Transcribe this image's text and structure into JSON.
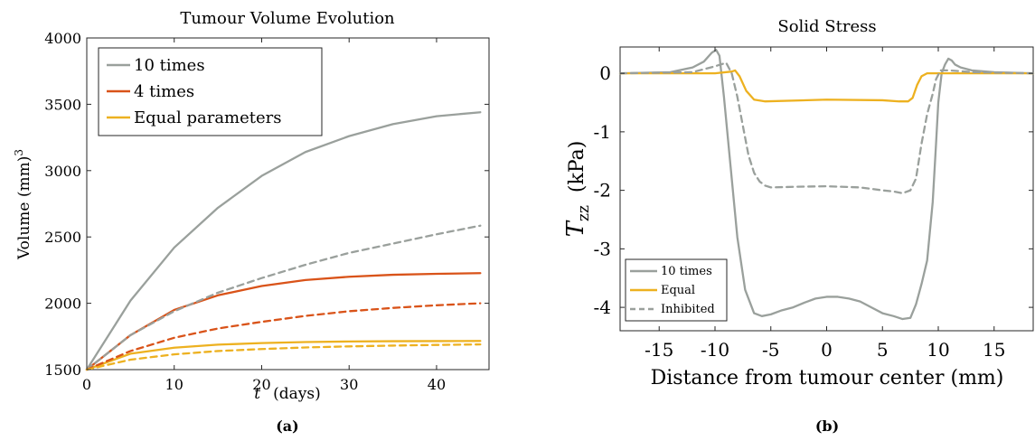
{
  "chart_data": [
    {
      "type": "line",
      "title": "Tumour Volume Evolution",
      "xlabel_italic": "t",
      "xlabel": "(days)",
      "ylabel": "Volume (mm)",
      "ylabel_sup": "3",
      "xlim": [
        0,
        46
      ],
      "ylim": [
        1500,
        4000
      ],
      "xticks": [
        0,
        10,
        20,
        30,
        40
      ],
      "yticks": [
        1500,
        2000,
        2500,
        3000,
        3500,
        4000
      ],
      "grid": false,
      "legend_position": "top-left",
      "caption": "(a)",
      "x": [
        0,
        5,
        10,
        15,
        20,
        25,
        30,
        35,
        40,
        45
      ],
      "series": [
        {
          "name": "10 times",
          "color": "#9aa09c",
          "style": "solid",
          "legend": true,
          "values": [
            1500,
            2020,
            2420,
            2720,
            2960,
            3140,
            3260,
            3350,
            3410,
            3440
          ]
        },
        {
          "name": "4 times",
          "color": "#d95319",
          "style": "solid",
          "legend": true,
          "values": [
            1500,
            1760,
            1950,
            2060,
            2130,
            2175,
            2200,
            2215,
            2222,
            2227
          ]
        },
        {
          "name": "Equal parameters",
          "color": "#edb120",
          "style": "solid",
          "legend": true,
          "values": [
            1500,
            1620,
            1665,
            1688,
            1700,
            1708,
            1712,
            1714,
            1715,
            1716
          ]
        },
        {
          "name": "",
          "color": "#9aa09c",
          "style": "dashed",
          "legend": false,
          "values": [
            1500,
            1760,
            1940,
            2080,
            2190,
            2290,
            2380,
            2450,
            2520,
            2585
          ]
        },
        {
          "name": "",
          "color": "#d95319",
          "style": "dashed",
          "legend": false,
          "values": [
            1500,
            1640,
            1740,
            1810,
            1860,
            1905,
            1940,
            1965,
            1985,
            2000
          ]
        },
        {
          "name": "",
          "color": "#edb120",
          "style": "dashed",
          "legend": false,
          "values": [
            1500,
            1575,
            1615,
            1640,
            1655,
            1667,
            1675,
            1681,
            1686,
            1690
          ]
        }
      ]
    },
    {
      "type": "line",
      "title": "Solid Stress",
      "ylabel_symbol": "T",
      "ylabel_sub": "zz",
      "ylabel_unit": "(kPa)",
      "xlabel": "Distance from tumour center  (mm)",
      "xlim": [
        -18.5,
        18.5
      ],
      "ylim": [
        -4.4,
        0.45
      ],
      "xticks": [
        -15,
        -10,
        -5,
        0,
        5,
        10,
        15
      ],
      "yticks": [
        0,
        -1,
        -2,
        -3,
        -4
      ],
      "grid": false,
      "legend_position": "bottom-left",
      "caption": "(b)",
      "series": [
        {
          "name": "10 times",
          "color": "#9aa09c",
          "style": "solid",
          "x": [
            -18.5,
            -14,
            -12,
            -11,
            -10.3,
            -9.9,
            -9.6,
            -9.2,
            -8.6,
            -8,
            -7.3,
            -6.5,
            -5.8,
            -5,
            -4,
            -3,
            -2,
            -1,
            0,
            1,
            2,
            3,
            4,
            5,
            6,
            6.8,
            7.5,
            8,
            8.5,
            9,
            9.5,
            9.8,
            10,
            10.3,
            10.6,
            10.9,
            11.2,
            11.5,
            12,
            13,
            15,
            18.5
          ],
          "y": [
            0,
            0.02,
            0.1,
            0.2,
            0.35,
            0.4,
            0.3,
            -0.4,
            -1.6,
            -2.8,
            -3.7,
            -4.1,
            -4.15,
            -4.12,
            -4.05,
            -4.0,
            -3.92,
            -3.85,
            -3.82,
            -3.82,
            -3.85,
            -3.9,
            -4.0,
            -4.1,
            -4.15,
            -4.2,
            -4.18,
            -3.95,
            -3.6,
            -3.2,
            -2.2,
            -1.2,
            -0.5,
            0.0,
            0.15,
            0.25,
            0.22,
            0.15,
            0.1,
            0.05,
            0.02,
            0
          ]
        },
        {
          "name": "Equal",
          "color": "#edb120",
          "style": "solid",
          "x": [
            -18.5,
            -10,
            -8.5,
            -8.2,
            -7.8,
            -7.2,
            -6.5,
            -5.5,
            0,
            5,
            6.5,
            7.3,
            7.7,
            8.1,
            8.5,
            9,
            18.5
          ],
          "y": [
            0,
            0,
            0.03,
            0.05,
            -0.05,
            -0.3,
            -0.45,
            -0.48,
            -0.45,
            -0.46,
            -0.48,
            -0.48,
            -0.42,
            -0.2,
            -0.05,
            0,
            0
          ]
        },
        {
          "name": "Inhibited",
          "color": "#9aa09c",
          "style": "dashed",
          "x": [
            -18.5,
            -12,
            -10,
            -9,
            -8.5,
            -8,
            -7.5,
            -7,
            -6.5,
            -6,
            -5.5,
            -5,
            -3,
            0,
            3,
            5,
            6,
            6.8,
            7.5,
            8,
            8.5,
            9,
            9.5,
            9.8,
            10.2,
            11,
            13,
            18.5
          ],
          "y": [
            0,
            0.02,
            0.12,
            0.18,
            0.0,
            -0.4,
            -0.9,
            -1.4,
            -1.7,
            -1.85,
            -1.92,
            -1.95,
            -1.94,
            -1.93,
            -1.95,
            -2.0,
            -2.02,
            -2.05,
            -2.0,
            -1.8,
            -1.2,
            -0.7,
            -0.35,
            -0.1,
            0.05,
            0.05,
            0.02,
            0
          ]
        }
      ]
    }
  ]
}
